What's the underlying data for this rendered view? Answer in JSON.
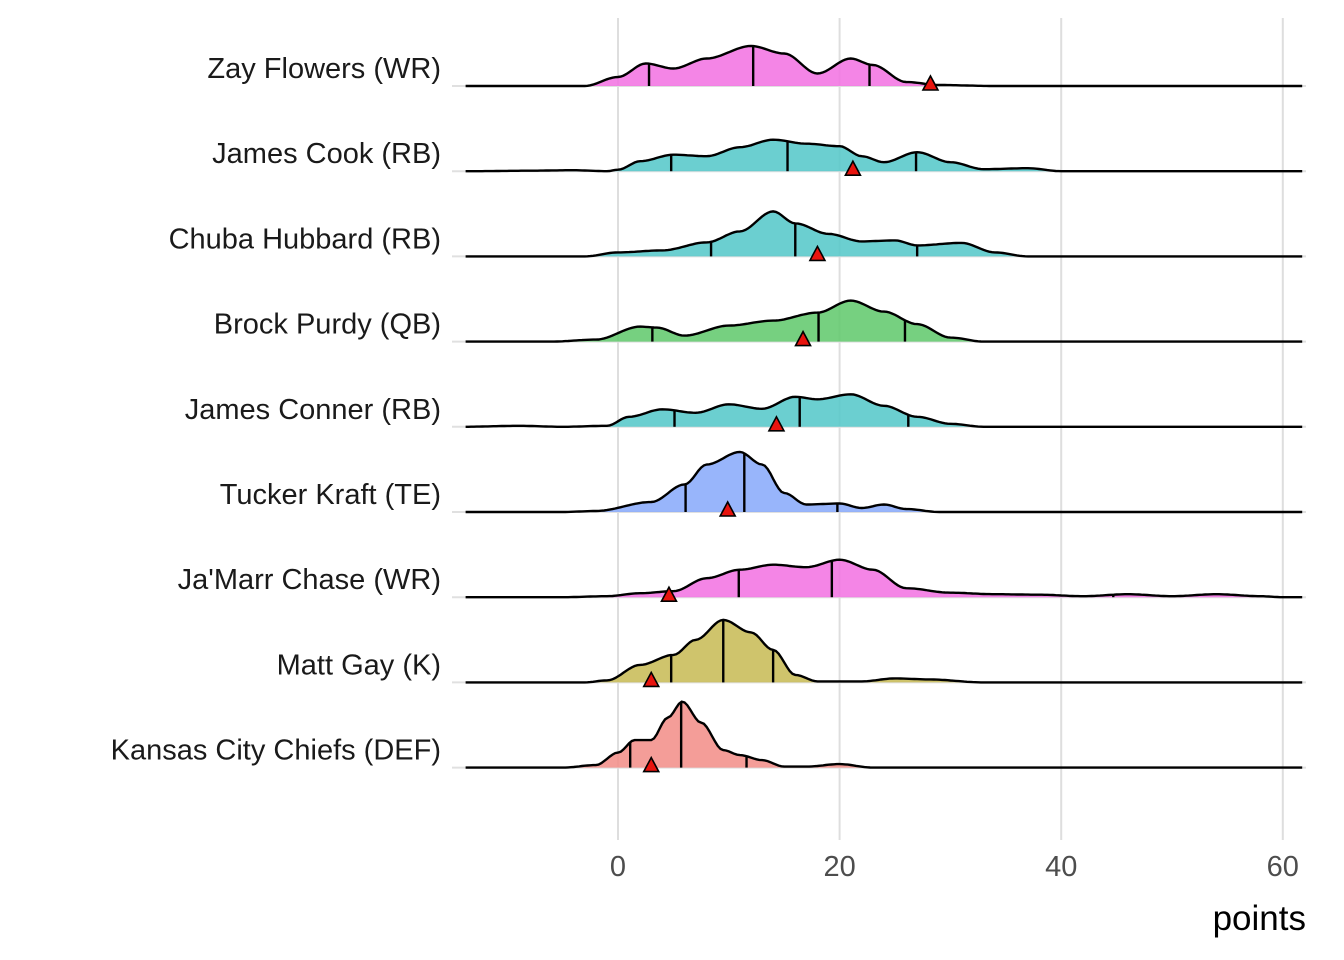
{
  "chart_data": {
    "type": "ridgeline",
    "title": "",
    "xlabel": "points",
    "ylabel": "",
    "xlim": [
      -14,
      62
    ],
    "xticks": [
      0,
      20,
      40,
      60
    ],
    "grid": true,
    "legend": "none",
    "quantile_markers": "vertical lines at 10th, 50th and 90th percentile",
    "actual_marker": "red triangle",
    "series": [
      {
        "name": "Zay Flowers (WR)",
        "color": "#F374E3",
        "density": [
          [
            -3,
            0
          ],
          [
            0,
            0.18
          ],
          [
            2.5,
            0.45
          ],
          [
            5,
            0.35
          ],
          [
            8,
            0.55
          ],
          [
            12,
            0.8
          ],
          [
            15,
            0.65
          ],
          [
            18,
            0.25
          ],
          [
            21,
            0.55
          ],
          [
            23,
            0.42
          ],
          [
            26,
            0.08
          ],
          [
            29,
            0.02
          ],
          [
            34,
            0
          ]
        ],
        "quantiles": [
          2.8,
          12.2,
          22.7
        ],
        "actual": 28.2
      },
      {
        "name": "James Cook (RB)",
        "color": "#56C8CA",
        "density": [
          [
            -13,
            0
          ],
          [
            -8,
            0.01
          ],
          [
            -4,
            0.02
          ],
          [
            -1,
            0
          ],
          [
            0,
            0.03
          ],
          [
            2,
            0.2
          ],
          [
            5,
            0.33
          ],
          [
            8,
            0.3
          ],
          [
            11,
            0.48
          ],
          [
            14,
            0.63
          ],
          [
            17,
            0.55
          ],
          [
            20,
            0.5
          ],
          [
            22,
            0.3
          ],
          [
            24,
            0.18
          ],
          [
            27,
            0.38
          ],
          [
            30,
            0.18
          ],
          [
            33,
            0.04
          ],
          [
            37,
            0.06
          ],
          [
            40,
            0
          ]
        ],
        "quantiles": [
          4.8,
          15.3,
          26.9
        ],
        "actual": 21.2
      },
      {
        "name": "Chuba Hubbard (RB)",
        "color": "#56C8CA",
        "density": [
          [
            -3,
            0
          ],
          [
            0,
            0.08
          ],
          [
            4,
            0.12
          ],
          [
            8,
            0.28
          ],
          [
            11,
            0.5
          ],
          [
            14,
            0.9
          ],
          [
            16,
            0.66
          ],
          [
            19,
            0.45
          ],
          [
            22,
            0.3
          ],
          [
            25,
            0.32
          ],
          [
            27,
            0.22
          ],
          [
            31,
            0.27
          ],
          [
            34,
            0.08
          ],
          [
            37,
            0
          ]
        ],
        "quantiles": [
          8.4,
          16.0,
          27.0
        ],
        "actual": 18.0
      },
      {
        "name": "Brock Purdy (QB)",
        "color": "#63C96E",
        "density": [
          [
            -6,
            0
          ],
          [
            -2,
            0.04
          ],
          [
            2,
            0.3
          ],
          [
            3.5,
            0.28
          ],
          [
            6,
            0.12
          ],
          [
            10,
            0.32
          ],
          [
            14,
            0.42
          ],
          [
            18,
            0.58
          ],
          [
            21,
            0.82
          ],
          [
            24,
            0.6
          ],
          [
            27,
            0.35
          ],
          [
            30,
            0.08
          ],
          [
            33,
            0
          ]
        ],
        "quantiles": [
          3.1,
          18.1,
          25.9
        ],
        "actual": 16.7
      },
      {
        "name": "James Conner (RB)",
        "color": "#56C8CA",
        "density": [
          [
            -14,
            0
          ],
          [
            -9,
            0.02
          ],
          [
            -5,
            0
          ],
          [
            -1,
            0.02
          ],
          [
            1,
            0.2
          ],
          [
            4,
            0.35
          ],
          [
            7,
            0.28
          ],
          [
            10,
            0.45
          ],
          [
            13,
            0.36
          ],
          [
            16,
            0.6
          ],
          [
            18,
            0.55
          ],
          [
            21,
            0.65
          ],
          [
            24,
            0.42
          ],
          [
            27,
            0.2
          ],
          [
            30,
            0.06
          ],
          [
            33,
            0
          ]
        ],
        "quantiles": [
          5.1,
          16.4,
          26.2
        ],
        "actual": 14.3
      },
      {
        "name": "Tucker Kraft (TE)",
        "color": "#8AABFA",
        "density": [
          [
            -5,
            0
          ],
          [
            -2,
            0.02
          ],
          [
            3,
            0.2
          ],
          [
            6,
            0.55
          ],
          [
            8,
            0.95
          ],
          [
            11,
            1.2
          ],
          [
            13,
            0.95
          ],
          [
            15,
            0.38
          ],
          [
            17,
            0.15
          ],
          [
            20,
            0.17
          ],
          [
            22,
            0.08
          ],
          [
            24,
            0.15
          ],
          [
            26,
            0.06
          ],
          [
            29,
            0
          ]
        ],
        "quantiles": [
          6.1,
          11.4,
          19.8
        ],
        "actual": 9.9
      },
      {
        "name": "Ja'Marr Chase (WR)",
        "color": "#F374E3",
        "density": [
          [
            -5,
            0
          ],
          [
            -1,
            0.02
          ],
          [
            2,
            0.08
          ],
          [
            5,
            0.12
          ],
          [
            8,
            0.38
          ],
          [
            11,
            0.55
          ],
          [
            14,
            0.65
          ],
          [
            17,
            0.6
          ],
          [
            20,
            0.75
          ],
          [
            23,
            0.55
          ],
          [
            26,
            0.18
          ],
          [
            30,
            0.09
          ],
          [
            34,
            0.06
          ],
          [
            38,
            0.05
          ],
          [
            42,
            0.02
          ],
          [
            46,
            0.06
          ],
          [
            50,
            0.02
          ],
          [
            54,
            0.06
          ],
          [
            58,
            0.02
          ],
          [
            60,
            0
          ]
        ],
        "quantiles": [
          10.9,
          19.3,
          44.7
        ],
        "actual": 4.6
      },
      {
        "name": "Matt Gay (K)",
        "color": "#C8BC58",
        "density": [
          [
            -3,
            0
          ],
          [
            -1,
            0.04
          ],
          [
            2,
            0.35
          ],
          [
            5,
            0.55
          ],
          [
            7,
            0.85
          ],
          [
            9.5,
            1.25
          ],
          [
            12,
            1.0
          ],
          [
            14,
            0.65
          ],
          [
            16,
            0.15
          ],
          [
            18,
            0.02
          ],
          [
            22,
            0.02
          ],
          [
            25,
            0.08
          ],
          [
            28,
            0.06
          ],
          [
            33,
            0
          ]
        ],
        "quantiles": [
          4.8,
          9.5,
          14.0
        ],
        "actual": 3.0
      },
      {
        "name": "Kansas City Chiefs (DEF)",
        "color": "#F2908A",
        "density": [
          [
            -5,
            0
          ],
          [
            -2,
            0.05
          ],
          [
            0,
            0.3
          ],
          [
            1.5,
            0.55
          ],
          [
            3,
            0.55
          ],
          [
            4.5,
            1.0
          ],
          [
            5.8,
            1.32
          ],
          [
            7.5,
            0.9
          ],
          [
            9.5,
            0.35
          ],
          [
            11,
            0.25
          ],
          [
            13,
            0.15
          ],
          [
            15,
            0.02
          ],
          [
            17,
            0.02
          ],
          [
            20,
            0.07
          ],
          [
            23,
            0
          ]
        ],
        "quantiles": [
          1.1,
          5.7,
          11.6
        ],
        "actual": 3.0
      }
    ]
  }
}
